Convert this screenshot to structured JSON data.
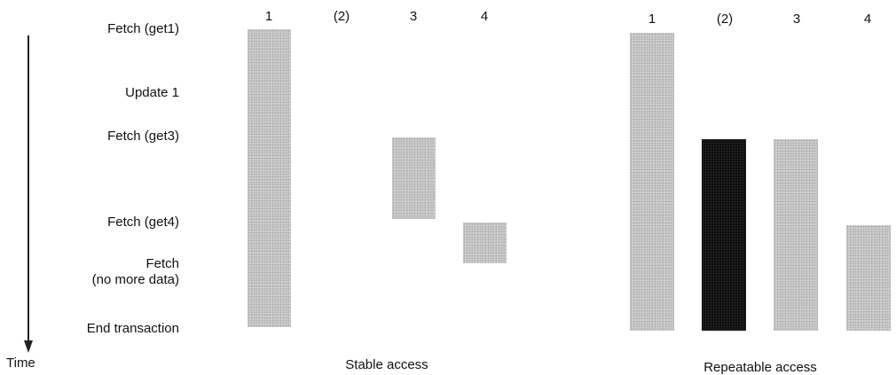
{
  "time_label": "Time",
  "events": [
    "Fetch (get1)",
    "Update 1",
    "Fetch (get3)",
    "Fetch (get4)",
    "Fetch\n(no more data)",
    "End transaction"
  ],
  "panels": [
    {
      "caption": "Stable access",
      "columns": [
        "1",
        "(2)",
        "3",
        "4"
      ]
    },
    {
      "caption": "Repeatable access",
      "columns": [
        "1",
        "(2)",
        "3",
        "4"
      ]
    }
  ],
  "colors": {
    "shared_lock": "#c9c9c9",
    "exclusive_lock": "#0d0d0d"
  }
}
